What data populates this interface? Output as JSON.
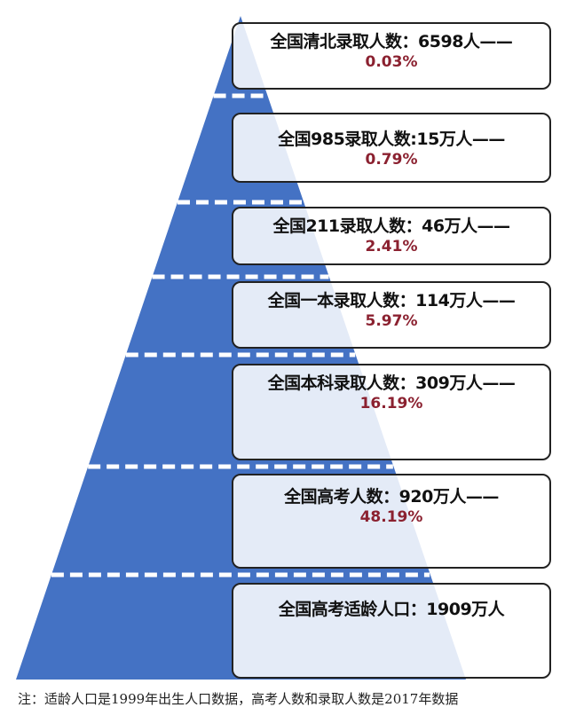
{
  "colors": {
    "pyramid": "#4472c4",
    "percent": "#8b2130",
    "dash": "#ffffff"
  },
  "levels": [
    {
      "label": "全国清北录取人数：6598人——",
      "percent": "0.03%"
    },
    {
      "label": "全国985录取人数:15万人——",
      "percent": "0.79%"
    },
    {
      "label": "全国211录取人数：46万人——",
      "percent": "2.41%"
    },
    {
      "label": "全国一本录取人数：114万人——",
      "percent": "5.97%"
    },
    {
      "label": "全国本科录取人数：309万人——",
      "percent": "16.19%"
    },
    {
      "label": "全国高考人数：920万人——",
      "percent": "48.19%"
    },
    {
      "label": "全国高考适龄人口：1909万人"
    }
  ],
  "note": "注：适龄人口是1999年出生人口数据，高考人数和录取人数是2017年数据"
}
